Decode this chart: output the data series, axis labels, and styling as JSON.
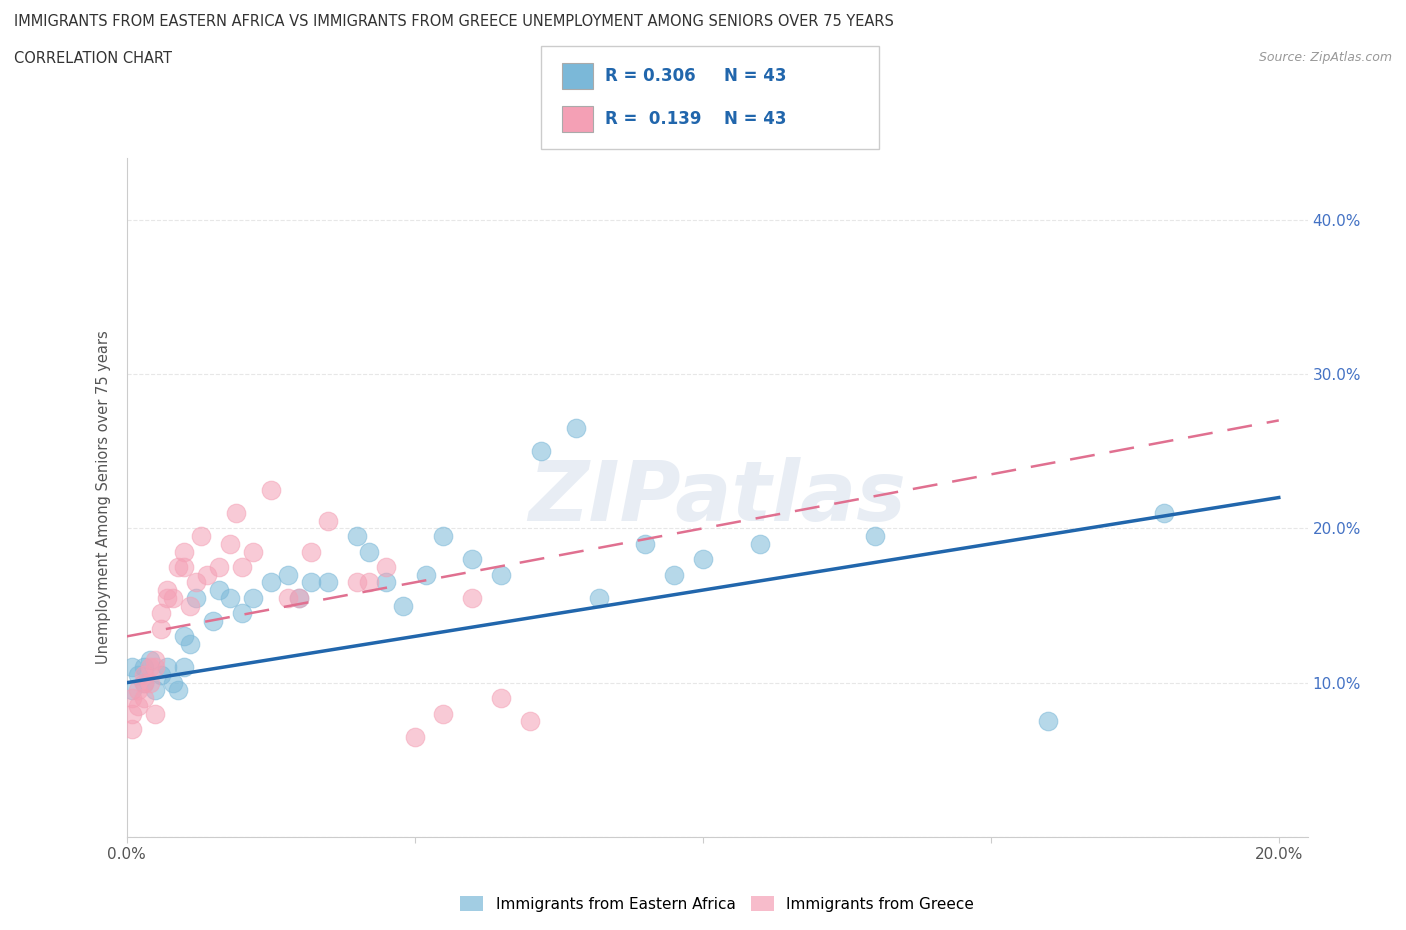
{
  "title_line1": "IMMIGRANTS FROM EASTERN AFRICA VS IMMIGRANTS FROM GREECE UNEMPLOYMENT AMONG SENIORS OVER 75 YEARS",
  "title_line2": "CORRELATION CHART",
  "source": "Source: ZipAtlas.com",
  "ylabel": "Unemployment Among Seniors over 75 years",
  "xlim": [
    0.0,
    0.205
  ],
  "ylim": [
    0.0,
    0.44
  ],
  "xtick_positions": [
    0.0,
    0.2
  ],
  "xtick_labels": [
    "0.0%",
    "20.0%"
  ],
  "yticks": [
    0.0,
    0.1,
    0.2,
    0.3,
    0.4
  ],
  "ytick_labels_right": [
    "",
    "10.0%",
    "20.0%",
    "30.0%",
    "40.0%"
  ],
  "r_eastern_africa": 0.306,
  "n_eastern_africa": 43,
  "r_greece": 0.139,
  "n_greece": 43,
  "color_eastern_africa": "#7bb8d8",
  "color_greece": "#f4a0b5",
  "trendline_color_eastern_africa": "#2166ac",
  "trendline_color_greece": "#e07090",
  "watermark": "ZIPatlas",
  "legend_label_eastern_africa": "Immigrants from Eastern Africa",
  "legend_label_greece": "Immigrants from Greece",
  "eastern_africa_x": [
    0.001,
    0.001,
    0.002,
    0.003,
    0.003,
    0.004,
    0.005,
    0.006,
    0.007,
    0.008,
    0.009,
    0.01,
    0.01,
    0.011,
    0.012,
    0.015,
    0.016,
    0.018,
    0.02,
    0.022,
    0.025,
    0.028,
    0.03,
    0.032,
    0.035,
    0.04,
    0.042,
    0.045,
    0.048,
    0.052,
    0.055,
    0.06,
    0.065,
    0.072,
    0.078,
    0.082,
    0.09,
    0.095,
    0.1,
    0.11,
    0.13,
    0.16,
    0.18
  ],
  "eastern_africa_y": [
    0.11,
    0.095,
    0.105,
    0.1,
    0.11,
    0.115,
    0.095,
    0.105,
    0.11,
    0.1,
    0.095,
    0.11,
    0.13,
    0.125,
    0.155,
    0.14,
    0.16,
    0.155,
    0.145,
    0.155,
    0.165,
    0.17,
    0.155,
    0.165,
    0.165,
    0.195,
    0.185,
    0.165,
    0.15,
    0.17,
    0.195,
    0.18,
    0.17,
    0.25,
    0.265,
    0.155,
    0.19,
    0.17,
    0.18,
    0.19,
    0.195,
    0.075,
    0.21
  ],
  "greece_x": [
    0.001,
    0.001,
    0.001,
    0.002,
    0.002,
    0.003,
    0.003,
    0.003,
    0.004,
    0.004,
    0.005,
    0.005,
    0.005,
    0.006,
    0.006,
    0.007,
    0.007,
    0.008,
    0.009,
    0.01,
    0.01,
    0.011,
    0.012,
    0.013,
    0.014,
    0.016,
    0.018,
    0.019,
    0.02,
    0.022,
    0.025,
    0.028,
    0.03,
    0.032,
    0.035,
    0.04,
    0.042,
    0.045,
    0.05,
    0.055,
    0.06,
    0.065,
    0.07
  ],
  "greece_y": [
    0.07,
    0.08,
    0.09,
    0.085,
    0.095,
    0.09,
    0.1,
    0.105,
    0.1,
    0.11,
    0.11,
    0.08,
    0.115,
    0.145,
    0.135,
    0.16,
    0.155,
    0.155,
    0.175,
    0.185,
    0.175,
    0.15,
    0.165,
    0.195,
    0.17,
    0.175,
    0.19,
    0.21,
    0.175,
    0.185,
    0.225,
    0.155,
    0.155,
    0.185,
    0.205,
    0.165,
    0.165,
    0.175,
    0.065,
    0.08,
    0.155,
    0.09,
    0.075
  ]
}
